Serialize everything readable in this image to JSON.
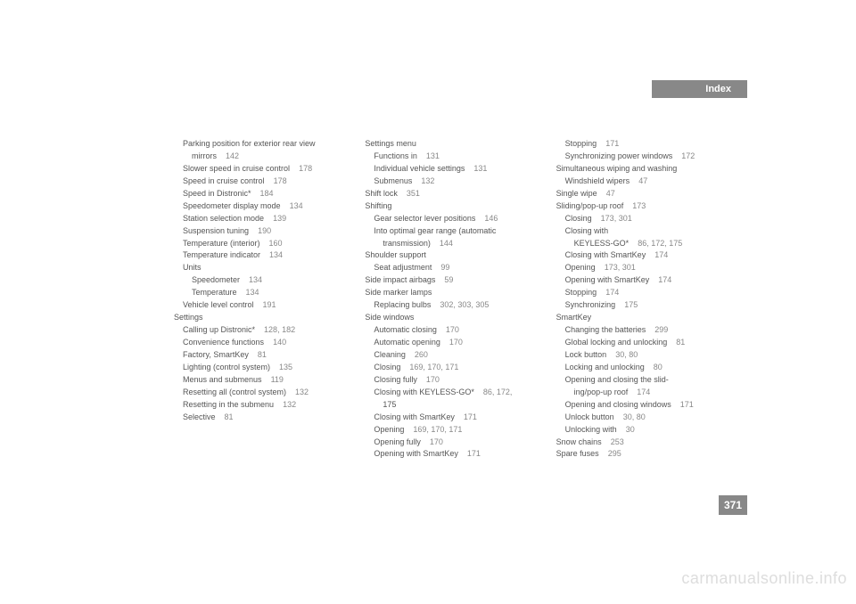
{
  "header": {
    "label": "Index"
  },
  "pageNumber": "371",
  "watermark": "carmanualsonline.info",
  "columns": [
    [
      {
        "indent": 1,
        "text": "Parking position for exterior rear view",
        "pages": ""
      },
      {
        "indent": 2,
        "text": "mirrors",
        "pages": "142"
      },
      {
        "indent": 1,
        "text": "Slower speed in cruise control",
        "pages": "178"
      },
      {
        "indent": 1,
        "text": "Speed in cruise control",
        "pages": "178"
      },
      {
        "indent": 1,
        "text": "Speed in Distronic*",
        "pages": "184"
      },
      {
        "indent": 1,
        "text": "Speedometer display mode",
        "pages": "134"
      },
      {
        "indent": 1,
        "text": "Station selection mode",
        "pages": "139"
      },
      {
        "indent": 1,
        "text": "Suspension tuning",
        "pages": "190"
      },
      {
        "indent": 1,
        "text": "Temperature (interior)",
        "pages": "160"
      },
      {
        "indent": 1,
        "text": "Temperature indicator",
        "pages": "134"
      },
      {
        "indent": 1,
        "text": "Units",
        "pages": ""
      },
      {
        "indent": 2,
        "text": "Speedometer",
        "pages": "134"
      },
      {
        "indent": 2,
        "text": "Temperature",
        "pages": "134"
      },
      {
        "indent": 1,
        "text": "Vehicle level control",
        "pages": "191"
      },
      {
        "indent": 0,
        "text": "Settings",
        "pages": ""
      },
      {
        "indent": 1,
        "text": "Calling up Distronic*",
        "pages": "128, 182"
      },
      {
        "indent": 1,
        "text": "Convenience functions",
        "pages": "140"
      },
      {
        "indent": 1,
        "text": "Factory, SmartKey",
        "pages": "81"
      },
      {
        "indent": 1,
        "text": "Lighting (control system)",
        "pages": "135"
      },
      {
        "indent": 1,
        "text": "Menus and submenus",
        "pages": "119"
      },
      {
        "indent": 1,
        "text": "Resetting all (control system)",
        "pages": "132"
      },
      {
        "indent": 1,
        "text": "Resetting in the submenu",
        "pages": "132"
      },
      {
        "indent": 1,
        "text": "Selective",
        "pages": "81"
      }
    ],
    [
      {
        "indent": 0,
        "text": "Settings menu",
        "pages": ""
      },
      {
        "indent": 1,
        "text": "Functions in",
        "pages": "131"
      },
      {
        "indent": 1,
        "text": "Individual vehicle settings",
        "pages": "131"
      },
      {
        "indent": 1,
        "text": "Submenus",
        "pages": "132"
      },
      {
        "indent": 0,
        "text": "Shift lock",
        "pages": "351"
      },
      {
        "indent": 0,
        "text": "Shifting",
        "pages": ""
      },
      {
        "indent": 1,
        "text": "Gear selector lever positions",
        "pages": "146"
      },
      {
        "indent": 1,
        "text": "Into optimal gear range (automatic",
        "pages": ""
      },
      {
        "indent": 2,
        "text": "transmission)",
        "pages": "144"
      },
      {
        "indent": 0,
        "text": "Shoulder support",
        "pages": ""
      },
      {
        "indent": 1,
        "text": "Seat adjustment",
        "pages": "99"
      },
      {
        "indent": 0,
        "text": "Side impact airbags",
        "pages": "59"
      },
      {
        "indent": 0,
        "text": "Side marker lamps",
        "pages": ""
      },
      {
        "indent": 1,
        "text": "Replacing bulbs",
        "pages": "302, 303, 305"
      },
      {
        "indent": 0,
        "text": "Side windows",
        "pages": ""
      },
      {
        "indent": 1,
        "text": "Automatic closing",
        "pages": "170"
      },
      {
        "indent": 1,
        "text": "Automatic opening",
        "pages": "170"
      },
      {
        "indent": 1,
        "text": "Cleaning",
        "pages": "260"
      },
      {
        "indent": 1,
        "text": "Closing",
        "pages": "169, 170, 171"
      },
      {
        "indent": 1,
        "text": "Closing fully",
        "pages": "170"
      },
      {
        "indent": 1,
        "text": "Closing with KEYLESS-GO*",
        "pages": "86, 172,"
      },
      {
        "indent": 2,
        "text": "175",
        "pages": ""
      },
      {
        "indent": 1,
        "text": "Closing with SmartKey",
        "pages": "171"
      },
      {
        "indent": 1,
        "text": "Opening",
        "pages": "169, 170, 171"
      },
      {
        "indent": 1,
        "text": "Opening fully",
        "pages": "170"
      },
      {
        "indent": 1,
        "text": "Opening with SmartKey",
        "pages": "171"
      }
    ],
    [
      {
        "indent": 1,
        "text": "Stopping",
        "pages": "171"
      },
      {
        "indent": 1,
        "text": "Synchronizing power windows",
        "pages": "172"
      },
      {
        "indent": 0,
        "text": "Simultaneous wiping and washing",
        "pages": ""
      },
      {
        "indent": 1,
        "text": "Windshield wipers",
        "pages": "47"
      },
      {
        "indent": 0,
        "text": "Single wipe",
        "pages": "47"
      },
      {
        "indent": 0,
        "text": "Sliding/pop-up roof",
        "pages": "173"
      },
      {
        "indent": 1,
        "text": "Closing",
        "pages": "173, 301"
      },
      {
        "indent": 1,
        "text": "Closing with",
        "pages": ""
      },
      {
        "indent": 2,
        "text": "KEYLESS-GO*",
        "pages": "86, 172, 175"
      },
      {
        "indent": 1,
        "text": "Closing with SmartKey",
        "pages": "174"
      },
      {
        "indent": 1,
        "text": "Opening",
        "pages": "173, 301"
      },
      {
        "indent": 1,
        "text": "Opening with SmartKey",
        "pages": "174"
      },
      {
        "indent": 1,
        "text": "Stopping",
        "pages": "174"
      },
      {
        "indent": 1,
        "text": "Synchronizing",
        "pages": "175"
      },
      {
        "indent": 0,
        "text": "SmartKey",
        "pages": ""
      },
      {
        "indent": 1,
        "text": "Changing the batteries",
        "pages": "299"
      },
      {
        "indent": 1,
        "text": "Global locking and unlocking",
        "pages": "81"
      },
      {
        "indent": 1,
        "text": "Lock button",
        "pages": "30, 80"
      },
      {
        "indent": 1,
        "text": "Locking and unlocking",
        "pages": "80"
      },
      {
        "indent": 1,
        "text": "Opening and closing the slid-",
        "pages": ""
      },
      {
        "indent": 2,
        "text": "ing/pop-up roof",
        "pages": "174"
      },
      {
        "indent": 1,
        "text": "Opening and closing windows",
        "pages": "171"
      },
      {
        "indent": 1,
        "text": "Unlock button",
        "pages": "30, 80"
      },
      {
        "indent": 1,
        "text": "Unlocking with",
        "pages": "30"
      },
      {
        "indent": 0,
        "text": "Snow chains",
        "pages": "253"
      },
      {
        "indent": 0,
        "text": "Spare fuses",
        "pages": "295"
      }
    ]
  ]
}
